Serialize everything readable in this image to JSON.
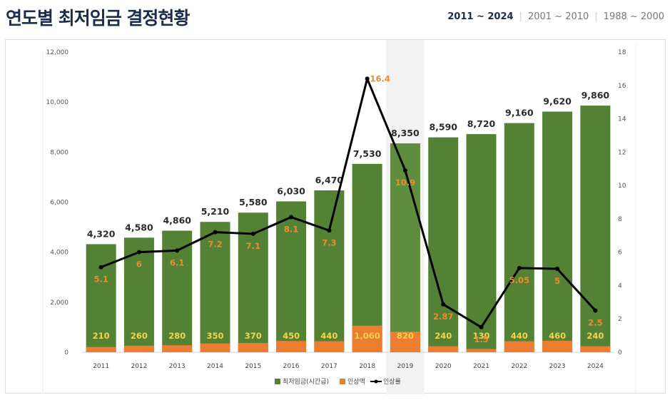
{
  "page": {
    "title": "연도별 최저임금 결정현황",
    "tabs": [
      "2011 ~ 2024",
      "2001 ~ 2010",
      "1988 ~ 2000"
    ],
    "active_tab": 0
  },
  "colors": {
    "wage": "#548235",
    "wage_highlight": "#5e8d3e",
    "increase": "#ed7d31",
    "rate_line": "#000000",
    "highlight_band": "#f2f2f2"
  },
  "chart_data": {
    "type": "bar",
    "categories": [
      "2011",
      "2012",
      "2013",
      "2014",
      "2015",
      "2016",
      "2017",
      "2018",
      "2019",
      "2020",
      "2021",
      "2022",
      "2023",
      "2024"
    ],
    "highlight_category": "2019",
    "series": [
      {
        "name": "최저임금(시간급)",
        "type": "bar",
        "axis": "left",
        "values": [
          4320,
          4580,
          4860,
          5210,
          5580,
          6030,
          6470,
          7530,
          8350,
          8590,
          8720,
          9160,
          9620,
          9860
        ],
        "labels": [
          "4,320",
          "4,580",
          "4,860",
          "5,210",
          "5,580",
          "6,030",
          "6,470",
          "7,530",
          "8,350",
          "8,590",
          "8,720",
          "9,160",
          "9,620",
          "9,860"
        ]
      },
      {
        "name": "인상액",
        "type": "bar",
        "axis": "left",
        "values": [
          210,
          260,
          280,
          350,
          370,
          450,
          440,
          1060,
          820,
          240,
          130,
          440,
          460,
          240
        ],
        "labels": [
          "210",
          "260",
          "280",
          "350",
          "370",
          "450",
          "440",
          "1,060",
          "820",
          "240",
          "130",
          "440",
          "460",
          "240"
        ]
      },
      {
        "name": "인상률",
        "type": "line",
        "axis": "right",
        "values": [
          5.1,
          6,
          6.1,
          7.2,
          7.1,
          8.1,
          7.3,
          16.4,
          10.9,
          2.87,
          1.5,
          5.05,
          5,
          2.5
        ],
        "labels": [
          "5.1",
          "6",
          "6.1",
          "7.2",
          "7.1",
          "8.1",
          "7.3",
          "16.4",
          "10.9",
          "2.87",
          "1.5",
          "5.05",
          "5",
          "2.5"
        ]
      }
    ],
    "left_axis": {
      "ylim": [
        0,
        12000
      ],
      "ticks": [
        "0",
        "2,000",
        "4,000",
        "6,000",
        "8,000",
        "10,000",
        "12,000"
      ]
    },
    "right_axis": {
      "ylim": [
        0,
        18
      ],
      "ticks": [
        "0",
        "2",
        "4",
        "6",
        "8",
        "10",
        "12",
        "14",
        "16",
        "18"
      ]
    },
    "legend": {
      "position": "bottom",
      "items": [
        "최저임금(시간급)",
        "인상액",
        "인상률"
      ]
    }
  }
}
